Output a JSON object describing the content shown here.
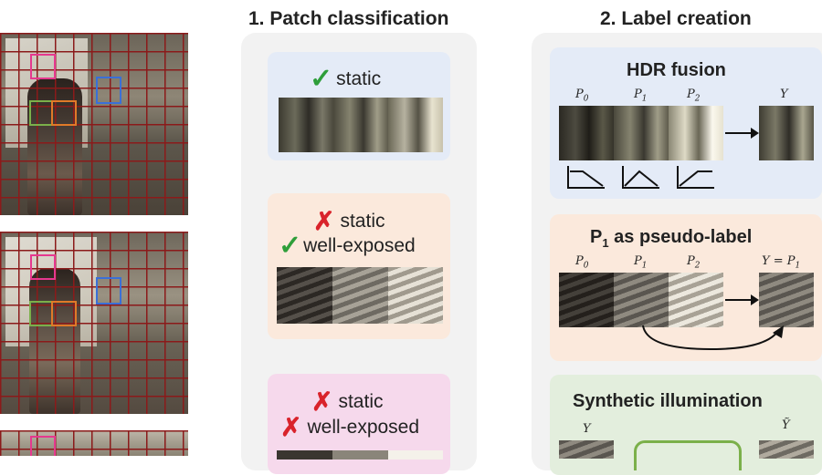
{
  "headings": {
    "patch_classification": "1. Patch classification",
    "label_creation": "2. Label creation"
  },
  "classification_cards": {
    "card1": {
      "line1": "static"
    },
    "card2": {
      "line1": "static",
      "line2": "well-exposed"
    },
    "card3": {
      "line1": "static",
      "line2": "well-exposed"
    }
  },
  "label_cards": {
    "hdr_fusion": {
      "title": "HDR fusion",
      "labels": [
        "P0",
        "P1",
        "P2"
      ],
      "output": "Y"
    },
    "pseudo_label": {
      "title_main": "P",
      "title_sub": "1",
      "title_rest": " as pseudo-label",
      "labels": [
        "P0",
        "P1",
        "P2"
      ],
      "output": "Y = P1"
    },
    "synthetic": {
      "title": "Synthetic illumination",
      "input": "Y",
      "output": "Ỹ"
    }
  },
  "colors": {
    "blue_card": "#e4ebf7",
    "orange_card": "#fbe9dc",
    "pink_card": "#f6d9ec",
    "green_card": "#e3eedd",
    "grid_red": "#8b1a1a",
    "box_pink": "#e6388f",
    "box_blue": "#3a6fd8",
    "box_green": "#7bb04a",
    "box_orange": "#e07a28"
  },
  "icons": [
    "check-icon",
    "cross-icon",
    "arrow-right-icon",
    "curved-arrow-icon",
    "response-curve-icon"
  ]
}
